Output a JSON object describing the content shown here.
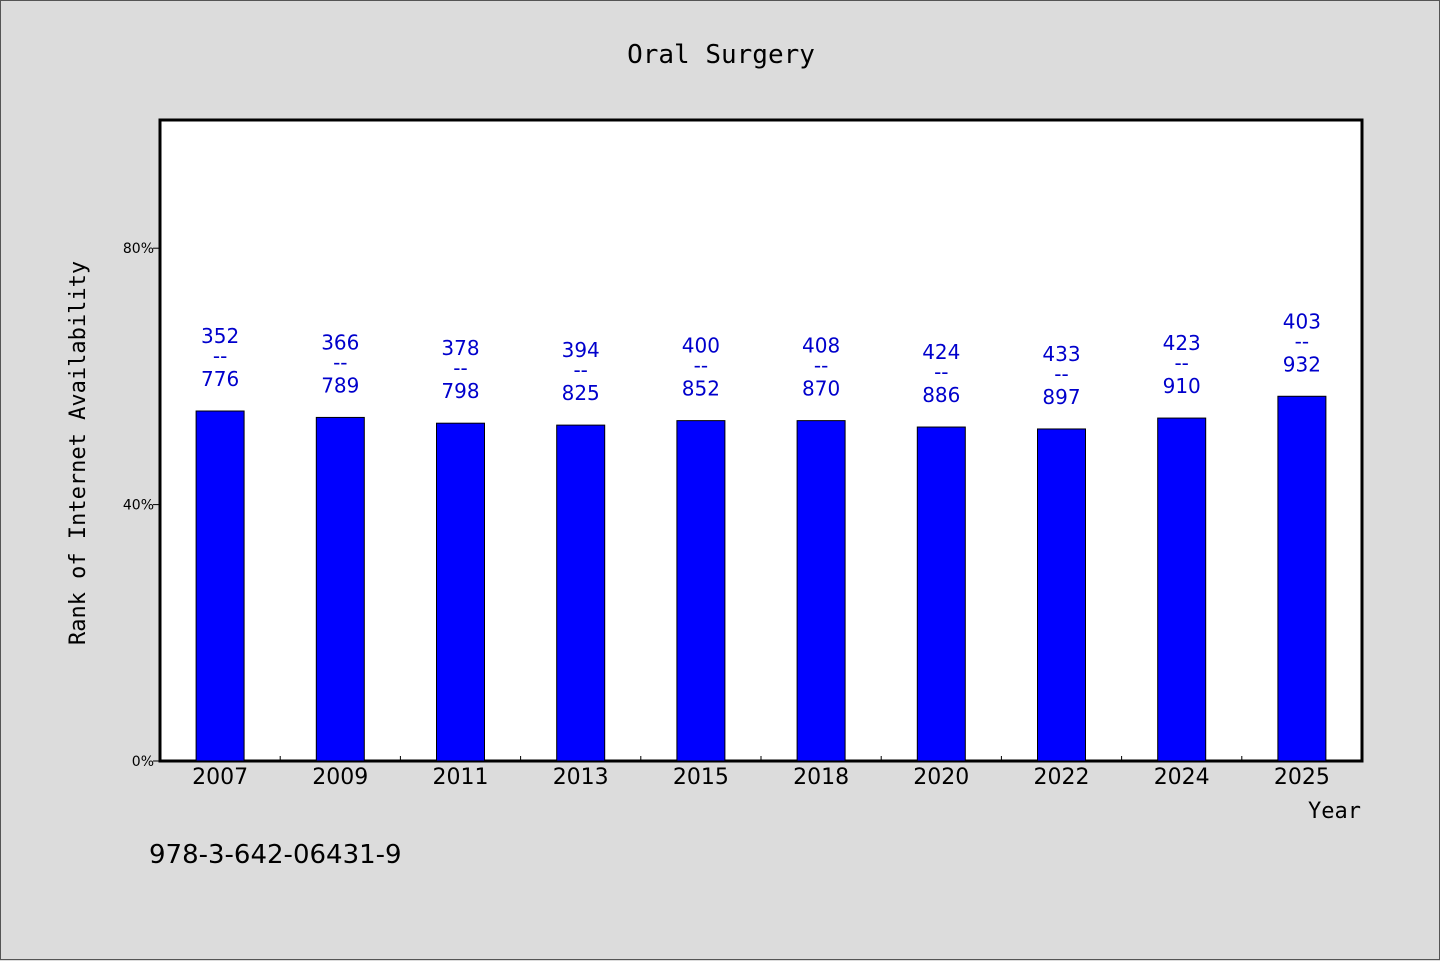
{
  "colors": {
    "bar": "#0000ff",
    "label": "#0000cc",
    "plot_bg": "#ffffff",
    "page_bg": "#dcdcdc"
  },
  "footer_text": "978-3-642-06431-9",
  "chart_data": {
    "type": "bar",
    "title": "Oral Surgery",
    "xlabel": "Year",
    "ylabel": "Rank of Internet Availability",
    "ylim": [
      0,
      100
    ],
    "yticks": [
      0,
      40,
      80
    ],
    "ytick_labels": [
      "0%",
      "40%",
      "80%"
    ],
    "grid": false,
    "categories": [
      "2007",
      "2009",
      "2011",
      "2013",
      "2015",
      "2018",
      "2020",
      "2022",
      "2024",
      "2025"
    ],
    "values": [
      54.6,
      53.6,
      52.7,
      52.4,
      53.1,
      53.1,
      52.1,
      51.8,
      53.5,
      56.9
    ],
    "data_labels": [
      {
        "top": "352",
        "mid": "--",
        "bottom": "776"
      },
      {
        "top": "366",
        "mid": "--",
        "bottom": "789"
      },
      {
        "top": "378",
        "mid": "--",
        "bottom": "798"
      },
      {
        "top": "394",
        "mid": "--",
        "bottom": "825"
      },
      {
        "top": "400",
        "mid": "--",
        "bottom": "852"
      },
      {
        "top": "408",
        "mid": "--",
        "bottom": "870"
      },
      {
        "top": "424",
        "mid": "--",
        "bottom": "886"
      },
      {
        "top": "433",
        "mid": "--",
        "bottom": "897"
      },
      {
        "top": "423",
        "mid": "--",
        "bottom": "910"
      },
      {
        "top": "403",
        "mid": "--",
        "bottom": "932"
      }
    ]
  }
}
